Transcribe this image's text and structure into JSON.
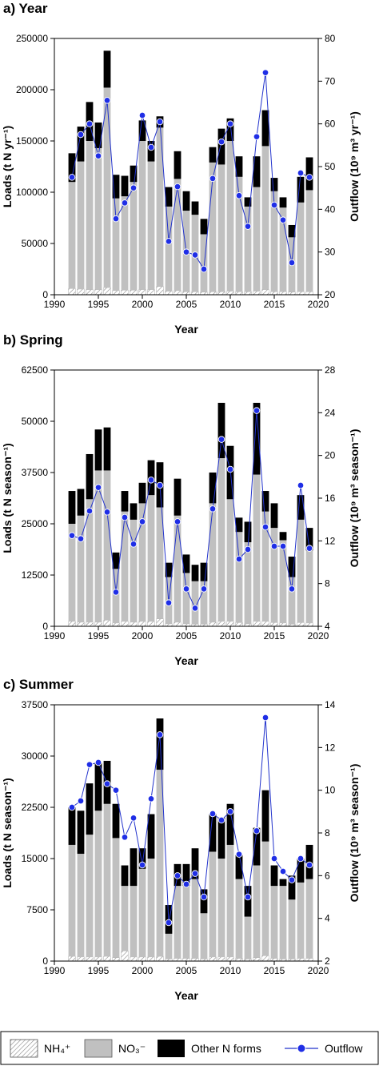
{
  "legend": {
    "nh4": "NH₄⁺",
    "no3": "NO₃⁻",
    "other": "Other N forms",
    "outflow": "Outflow"
  },
  "colors": {
    "no3": "#c0c0c0",
    "other": "#000000",
    "outflow": "#1f2ee6",
    "outflow_line": "#2233cc"
  },
  "chart_data": [
    {
      "type": "bar",
      "title": "a) Year",
      "xlabel": "Year",
      "ylabel": "Loads (t N yr⁻¹)",
      "y2label": "Outflow (10⁹ m³ yr⁻¹)",
      "xlim": [
        1990,
        2020
      ],
      "xticks": [
        1990,
        1995,
        2000,
        2005,
        2010,
        2015,
        2020
      ],
      "ylim": [
        0,
        250000
      ],
      "yticks": [
        0,
        50000,
        100000,
        150000,
        200000,
        250000
      ],
      "y2lim": [
        20,
        80
      ],
      "y2ticks": [
        20,
        30,
        40,
        50,
        60,
        70,
        80
      ],
      "grid": false,
      "x": [
        1992,
        1993,
        1994,
        1995,
        1996,
        1997,
        1998,
        1999,
        2000,
        2001,
        2002,
        2003,
        2004,
        2005,
        2006,
        2007,
        2008,
        2009,
        2010,
        2011,
        2012,
        2013,
        2014,
        2015,
        2016,
        2017,
        2018,
        2019
      ],
      "series": [
        {
          "name": "NH₄⁺",
          "type": "stacked-bar",
          "values": [
            6000,
            5500,
            5000,
            5000,
            7000,
            4000,
            4500,
            4500,
            5000,
            5000,
            8000,
            3500,
            4000,
            3000,
            3000,
            2500,
            3000,
            3000,
            3500,
            3000,
            3000,
            3500,
            5000,
            3000,
            3000,
            2500,
            3000,
            3000
          ]
        },
        {
          "name": "NO₃⁻",
          "type": "stacked-bar",
          "values": [
            104000,
            124500,
            145000,
            138000,
            195000,
            90000,
            91500,
            105500,
            145000,
            125000,
            155000,
            82500,
            109000,
            79000,
            75000,
            56500,
            126000,
            124000,
            146500,
            112000,
            83000,
            101500,
            140000,
            98000,
            82000,
            53500,
            87000,
            99000
          ]
        },
        {
          "name": "Other N forms",
          "type": "stacked-bar",
          "values": [
            28000,
            34000,
            38000,
            25000,
            36000,
            23000,
            20000,
            16000,
            20000,
            20000,
            11000,
            19000,
            27000,
            19000,
            13000,
            15000,
            15000,
            35000,
            22000,
            20000,
            9000,
            30000,
            35000,
            13000,
            10000,
            12000,
            25000,
            32000
          ]
        },
        {
          "name": "Outflow",
          "type": "line",
          "axis": "right",
          "values": [
            47.5,
            57.5,
            60.0,
            52.5,
            65.5,
            37.8,
            41.5,
            45.0,
            62.0,
            54.5,
            60.5,
            32.5,
            45.3,
            30.0,
            29.3,
            26.0,
            47.2,
            55.8,
            60.0,
            43.2,
            36.0,
            57.0,
            72.0,
            41.0,
            37.5,
            27.5,
            48.5,
            47.5
          ]
        }
      ]
    },
    {
      "type": "bar",
      "title": "b) Spring",
      "xlabel": "Year",
      "ylabel": "Loads (t N season⁻¹)",
      "y2label": "Outflow (10⁹ m³ season⁻¹)",
      "xlim": [
        1990,
        2020
      ],
      "xticks": [
        1990,
        1995,
        2000,
        2005,
        2010,
        2015,
        2020
      ],
      "ylim": [
        0,
        62500
      ],
      "yticks": [
        0,
        12500,
        25000,
        37500,
        50000,
        62500
      ],
      "y2lim": [
        4,
        28
      ],
      "y2ticks": [
        4,
        8,
        12,
        16,
        20,
        24,
        28
      ],
      "grid": false,
      "x": [
        1992,
        1993,
        1994,
        1995,
        1996,
        1997,
        1998,
        1999,
        2000,
        2001,
        2002,
        2003,
        2004,
        2005,
        2006,
        2007,
        2008,
        2009,
        2010,
        2011,
        2012,
        2013,
        2014,
        2015,
        2016,
        2017,
        2018,
        2019
      ],
      "series": [
        {
          "name": "NH₄⁺",
          "type": "stacked-bar",
          "values": [
            1200,
            1000,
            1000,
            1000,
            1500,
            800,
            1200,
            1000,
            1200,
            1200,
            1800,
            600,
            1000,
            600,
            500,
            500,
            1000,
            1200,
            1200,
            900,
            600,
            1200,
            1200,
            900,
            800,
            500,
            900,
            800
          ]
        },
        {
          "name": "NO₃⁻",
          "type": "stacked-bar",
          "values": [
            23800,
            26000,
            30000,
            37000,
            36500,
            13200,
            26800,
            25000,
            28800,
            30800,
            27200,
            11400,
            26000,
            12400,
            10500,
            10500,
            29000,
            39800,
            29800,
            22100,
            19900,
            35800,
            26800,
            23100,
            20200,
            11500,
            25100,
            17700
          ]
        },
        {
          "name": "Other N forms",
          "type": "stacked-bar",
          "values": [
            8000,
            6500,
            11000,
            10000,
            10500,
            4000,
            5000,
            4000,
            5000,
            8500,
            11000,
            3500,
            9000,
            4500,
            4000,
            4500,
            7500,
            13500,
            13000,
            3500,
            5000,
            17500,
            5000,
            6000,
            2000,
            5000,
            6000,
            5500
          ]
        },
        {
          "name": "Outflow",
          "type": "line",
          "axis": "right",
          "values": [
            12.5,
            12.2,
            14.8,
            17.0,
            14.7,
            7.2,
            14.2,
            11.7,
            13.8,
            17.7,
            17.2,
            6.2,
            13.8,
            7.5,
            5.7,
            7.5,
            15.0,
            21.5,
            18.7,
            10.3,
            11.2,
            24.2,
            13.3,
            11.5,
            11.5,
            7.5,
            17.2,
            11.3
          ]
        }
      ]
    },
    {
      "type": "bar",
      "title": "c) Summer",
      "xlabel": "Year",
      "ylabel": "Loads (t N season⁻¹)",
      "y2label": "Outflow (10⁹ m³ season⁻¹)",
      "xlim": [
        1990,
        2020
      ],
      "xticks": [
        1990,
        1995,
        2000,
        2005,
        2010,
        2015,
        2020
      ],
      "ylim": [
        0,
        37500
      ],
      "yticks": [
        0,
        7500,
        15000,
        22500,
        30000,
        37500
      ],
      "y2lim": [
        2,
        14
      ],
      "y2ticks": [
        2,
        4,
        6,
        8,
        10,
        12,
        14
      ],
      "grid": false,
      "x": [
        1992,
        1993,
        1994,
        1995,
        1996,
        1997,
        1998,
        1999,
        2000,
        2001,
        2002,
        2003,
        2004,
        2005,
        2006,
        2007,
        2008,
        2009,
        2010,
        2011,
        2012,
        2013,
        2014,
        2015,
        2016,
        2017,
        2018,
        2019
      ],
      "series": [
        {
          "name": "NH₄⁺",
          "type": "stacked-bar",
          "values": [
            700,
            600,
            600,
            600,
            700,
            500,
            1500,
            600,
            600,
            600,
            700,
            300,
            400,
            400,
            400,
            300,
            600,
            600,
            600,
            400,
            300,
            500,
            800,
            400,
            300,
            300,
            400,
            400
          ]
        },
        {
          "name": "NO₃⁻",
          "type": "stacked-bar",
          "values": [
            16300,
            15100,
            17900,
            21400,
            22300,
            17500,
            9500,
            10400,
            12900,
            14400,
            27300,
            3700,
            10600,
            10600,
            11600,
            6700,
            15400,
            14400,
            16400,
            11600,
            6200,
            13500,
            16700,
            10600,
            10700,
            8700,
            11100,
            11600
          ]
        },
        {
          "name": "Other N forms",
          "type": "stacked-bar",
          "values": [
            5500,
            6300,
            7500,
            7000,
            6300,
            5000,
            3000,
            5500,
            3000,
            6500,
            7500,
            4200,
            3200,
            3200,
            4500,
            3500,
            5500,
            6000,
            6000,
            3500,
            4500,
            5500,
            7500,
            3000,
            1000,
            3500,
            3500,
            5000
          ]
        },
        {
          "name": "Outflow",
          "type": "line",
          "axis": "right",
          "values": [
            9.2,
            9.5,
            11.2,
            11.3,
            10.3,
            10.0,
            7.8,
            8.7,
            6.5,
            9.6,
            12.6,
            3.8,
            6.0,
            5.6,
            6.1,
            5.0,
            8.9,
            8.6,
            9.0,
            7.0,
            5.0,
            8.1,
            13.4,
            6.8,
            6.2,
            5.8,
            6.8,
            6.5
          ]
        }
      ]
    }
  ]
}
